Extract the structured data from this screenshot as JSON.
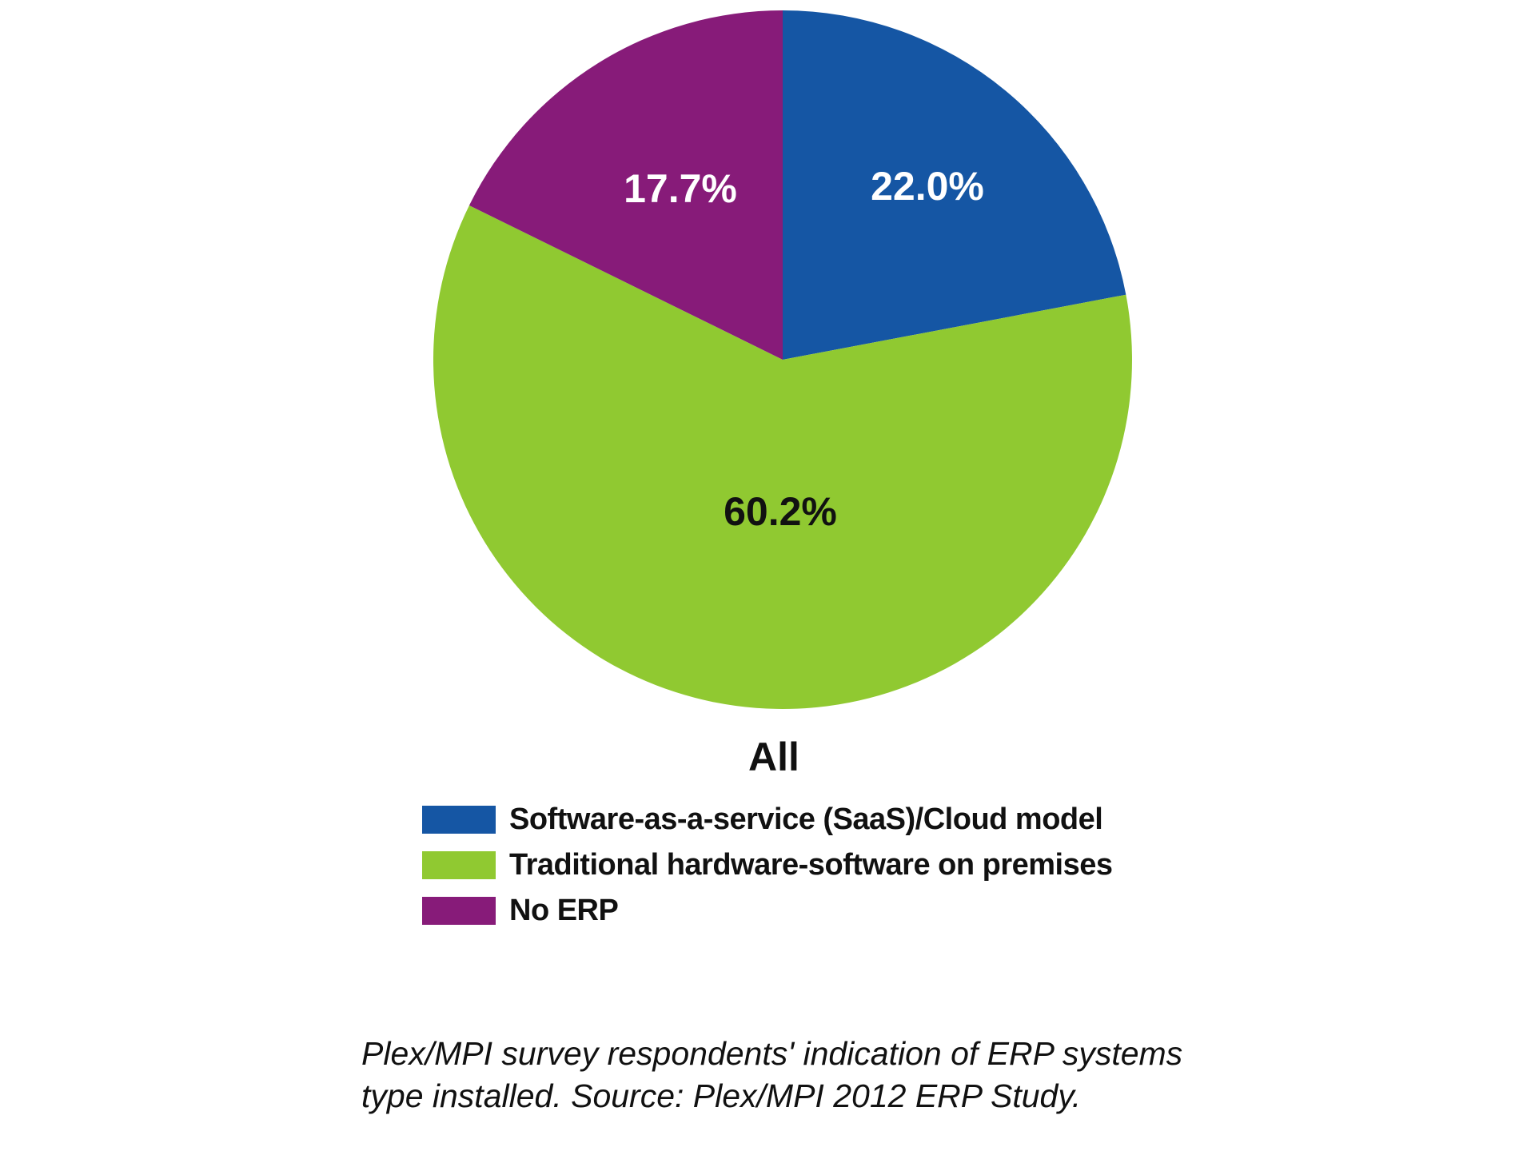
{
  "chart_data": {
    "type": "pie",
    "group_label": "All",
    "start_angle_deg": 0,
    "direction": "clockwise",
    "legend_position": "bottom-left",
    "slices": [
      {
        "label": "Software-as-a-service (SaaS)/Cloud model",
        "value": 22.0,
        "display": "22.0%",
        "color": "#1556A4",
        "label_color": "#FFFFFF"
      },
      {
        "label": "Traditional hardware-software on premises",
        "value": 60.2,
        "display": "60.2%",
        "color": "#90C931",
        "label_color": "#111111"
      },
      {
        "label": "No ERP",
        "value": 17.7,
        "display": "17.7%",
        "color": "#871B79",
        "label_color": "#FFFFFF"
      }
    ]
  },
  "caption": {
    "lines": [
      "Plex/MPI survey respondents' indication of ERP systems",
      "type installed. Source: Plex/MPI 2012 ERP Study."
    ],
    "full_text": "Plex/MPI survey respondents' indication of ERP systems type installed. Source: Plex/MPI 2012 ERP Study."
  }
}
